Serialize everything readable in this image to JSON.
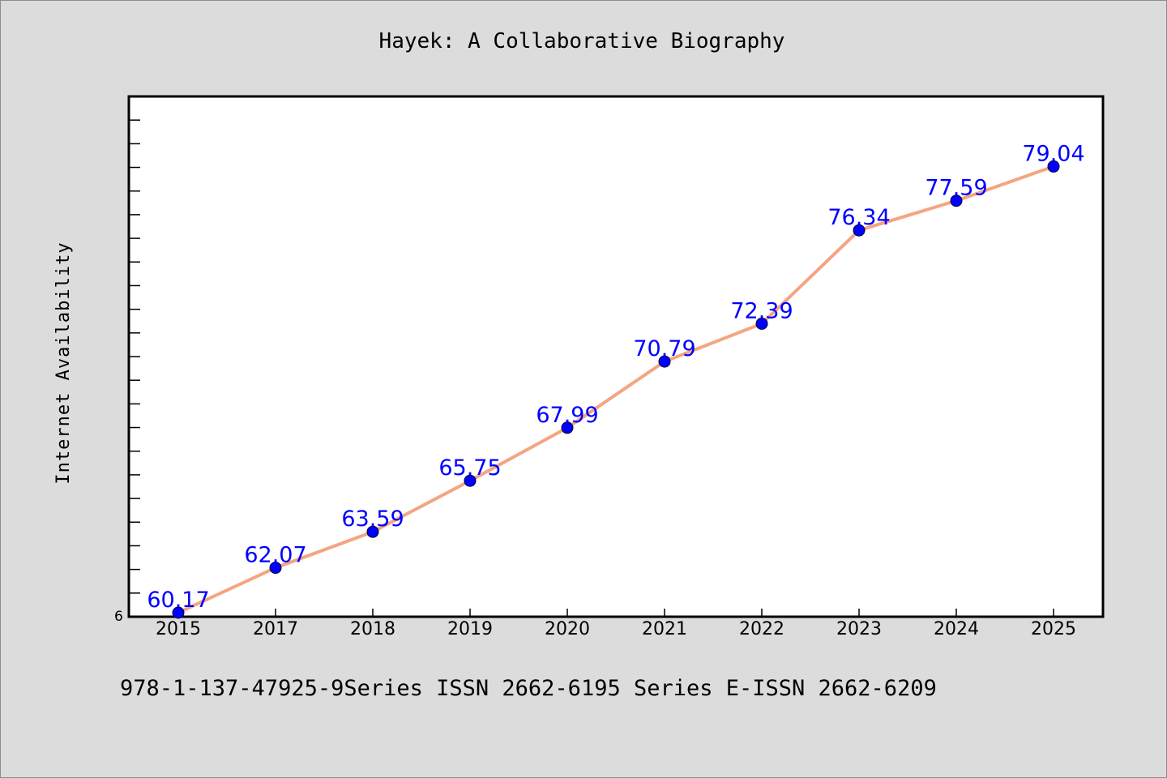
{
  "chart_data": {
    "type": "line",
    "title": "Hayek: A Collaborative Biography",
    "xlabel": "",
    "ylabel": "Internet Availability",
    "categories": [
      "2015",
      "2017",
      "2018",
      "2019",
      "2020",
      "2021",
      "2022",
      "2023",
      "2024",
      "2025"
    ],
    "series": [
      {
        "values": [
          60.17,
          62.07,
          63.59,
          65.75,
          67.99,
          70.79,
          72.39,
          76.34,
          77.59,
          79.04
        ]
      }
    ],
    "data_labels": [
      "60.17",
      "62.07",
      "63.59",
      "65.75",
      "67.99",
      "70.79",
      "72.39",
      "76.34",
      "77.59",
      "79.04"
    ],
    "y_tick_label": "6",
    "ylim": [
      60,
      82
    ],
    "grid": false,
    "legend": "none",
    "line_color": "#f4a582",
    "marker_color": "#0000ff"
  },
  "footer": {
    "text": "978-1-137-47925-9Series ISSN 2662-6195 Series E-ISSN 2662-6209"
  }
}
